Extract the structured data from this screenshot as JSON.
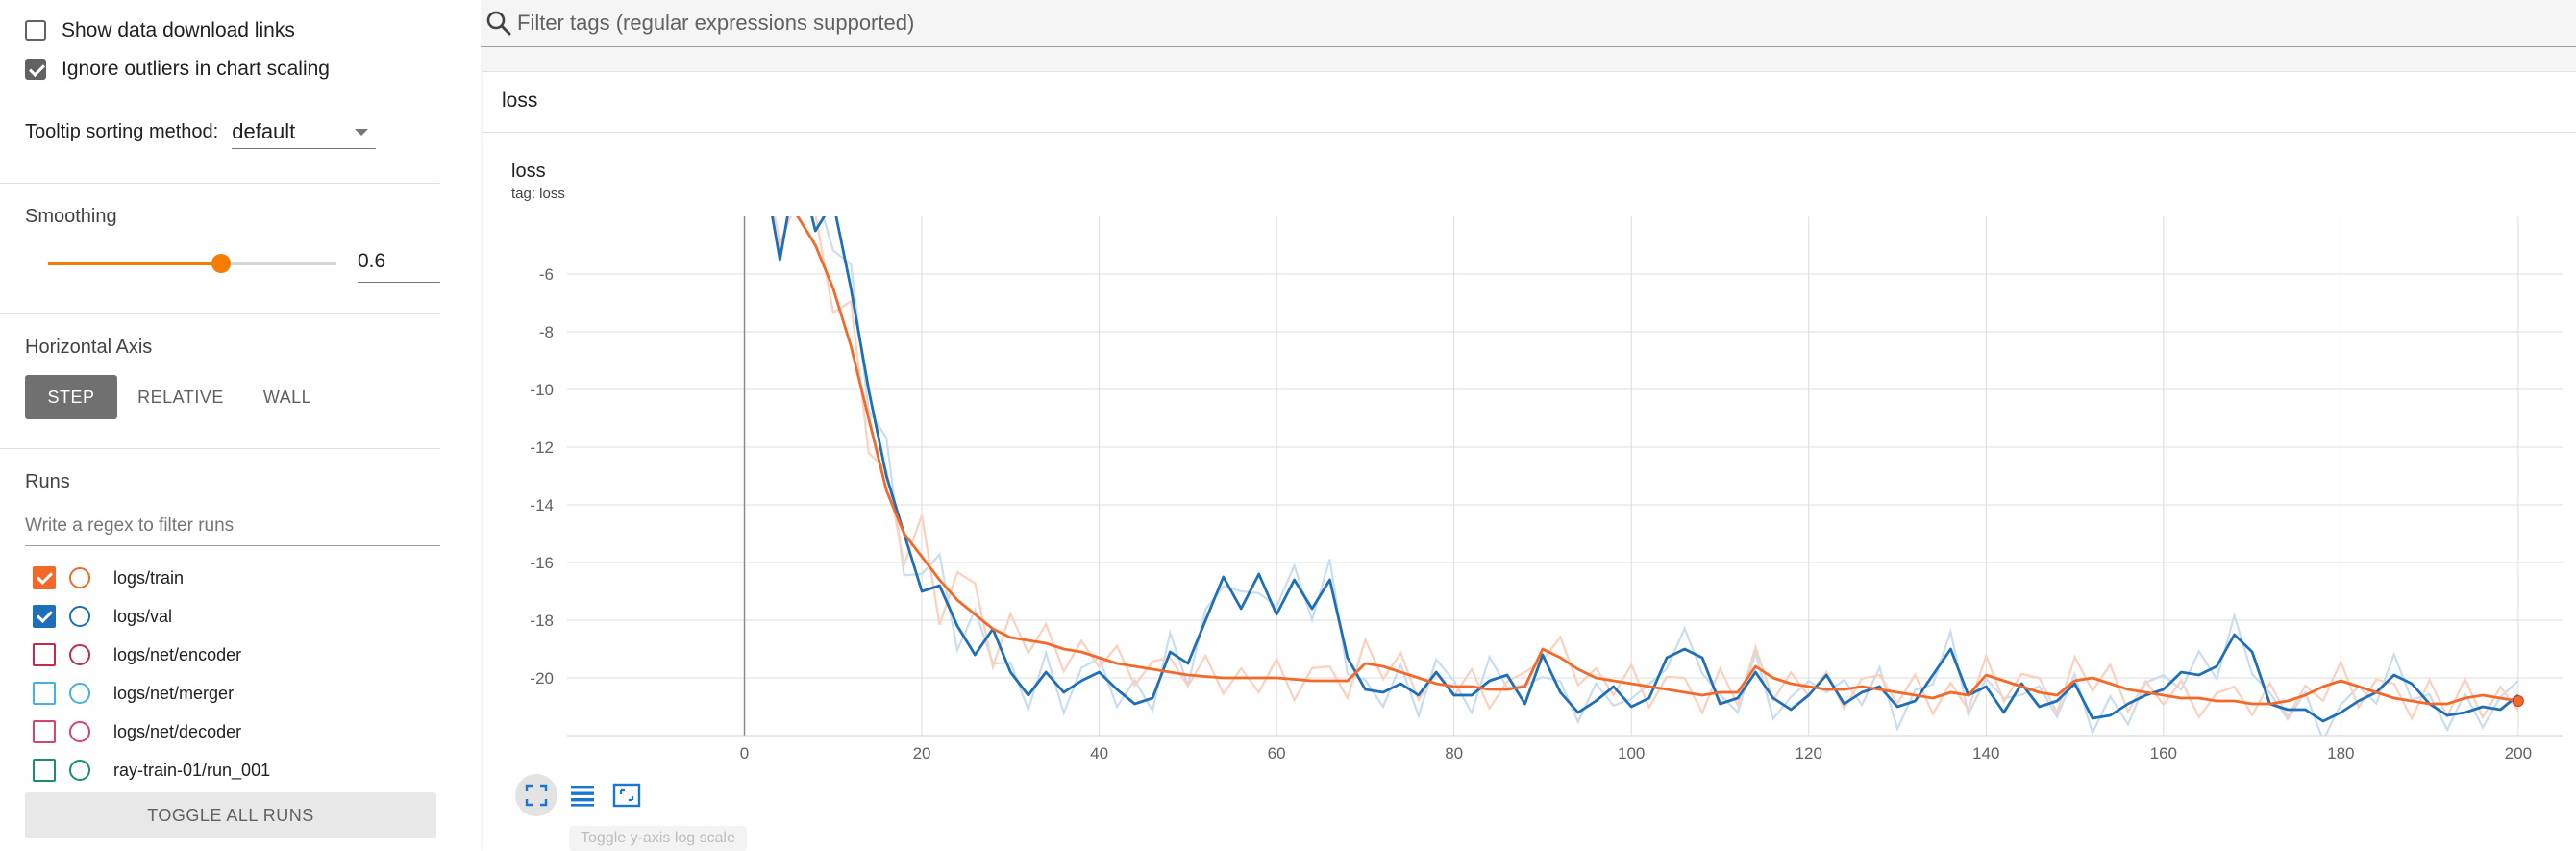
{
  "sidebar": {
    "show_download_links": {
      "label": "Show data download links",
      "checked": false
    },
    "ignore_outliers": {
      "label": "Ignore outliers in chart scaling",
      "checked": true
    },
    "tooltip_sorting": {
      "label": "Tooltip sorting method:",
      "value": "default"
    },
    "smoothing": {
      "title": "Smoothing",
      "value": "0.6",
      "level": 0.6
    },
    "horizontal_axis": {
      "title": "Horizontal Axis",
      "options": [
        "STEP",
        "RELATIVE",
        "WALL"
      ],
      "selected": "STEP"
    },
    "runs": {
      "title": "Runs",
      "filter_placeholder": "Write a regex to filter runs",
      "items": [
        {
          "label": "logs/train",
          "checked": true,
          "color": "#f4692a"
        },
        {
          "label": "logs/val",
          "checked": true,
          "color": "#1f6fb8"
        },
        {
          "label": "logs/net/encoder",
          "checked": false,
          "color": "#c42b46"
        },
        {
          "label": "logs/net/merger",
          "checked": false,
          "color": "#43b2e0"
        },
        {
          "label": "logs/net/decoder",
          "checked": false,
          "color": "#d4476a"
        },
        {
          "label": "ray-train-01/run_001",
          "checked": false,
          "color": "#1a8f6f"
        }
      ],
      "toggle_all_label": "TOGGLE ALL RUNS"
    }
  },
  "main": {
    "search_placeholder": "Filter tags (regular expressions supported)",
    "group_title": "loss",
    "chart_title": "loss",
    "chart_tag": "tag: loss",
    "log_scale_tooltip": "Toggle y-axis log scale",
    "icons": [
      "search-icon",
      "fullscreen-icon",
      "lines-icon",
      "fit-domain-icon"
    ]
  },
  "chart_data": {
    "type": "line",
    "title": "loss",
    "subtitle": "tag: loss",
    "xlabel": "",
    "ylabel": "",
    "xlim": [
      -20,
      205
    ],
    "ylim": [
      -22,
      -4
    ],
    "x_ticks": [
      0,
      20,
      40,
      60,
      80,
      100,
      120,
      140,
      160,
      180,
      200
    ],
    "y_ticks": [
      -6,
      -8,
      -10,
      -12,
      -14,
      -16,
      -18,
      -20
    ],
    "grid": true,
    "colors": {
      "train": "#f4692a",
      "val": "#1f6fb8",
      "train_raw": "#fbd0bc",
      "val_raw": "#c9dcf0"
    },
    "series": [
      {
        "name": "logs/val",
        "x": [
          0,
          2,
          4,
          6,
          8,
          10,
          12,
          14,
          16,
          18,
          20,
          22,
          24,
          26,
          28,
          30,
          32,
          34,
          36,
          38,
          40,
          42,
          44,
          46,
          48,
          50,
          52,
          54,
          56,
          58,
          60,
          62,
          64,
          66,
          68,
          70,
          72,
          74,
          76,
          78,
          80,
          82,
          84,
          86,
          88,
          90,
          92,
          94,
          96,
          98,
          100,
          102,
          104,
          106,
          108,
          110,
          112,
          114,
          116,
          118,
          120,
          122,
          124,
          126,
          128,
          130,
          132,
          134,
          136,
          138,
          140,
          142,
          144,
          146,
          148,
          150,
          152,
          154,
          156,
          158,
          160,
          162,
          164,
          166,
          168,
          170,
          172,
          174,
          176,
          178,
          180,
          182,
          184,
          186,
          188,
          190,
          192,
          194,
          196,
          198,
          200
        ],
        "y": [
          -3,
          -2,
          -5.5,
          -2,
          -4.5,
          -3.5,
          -6.5,
          -10,
          -13,
          -15,
          -17,
          -16.8,
          -18.2,
          -19.2,
          -18.3,
          -19.8,
          -20.6,
          -19.8,
          -20.5,
          -20.1,
          -19.8,
          -20.4,
          -20.9,
          -20.7,
          -19.1,
          -19.5,
          -18,
          -16.5,
          -17.6,
          -16.4,
          -17.8,
          -16.6,
          -17.6,
          -16.6,
          -19.3,
          -20.4,
          -20.5,
          -20.2,
          -20.6,
          -19.8,
          -20.6,
          -20.6,
          -20.1,
          -19.9,
          -20.9,
          -19.2,
          -20.5,
          -21.2,
          -20.8,
          -20.3,
          -21,
          -20.7,
          -19.3,
          -19.0,
          -19.3,
          -20.9,
          -20.7,
          -19.8,
          -20.7,
          -21.1,
          -20.6,
          -19.9,
          -20.9,
          -20.5,
          -20.3,
          -21,
          -20.8,
          -19.9,
          -19.0,
          -20.6,
          -20.3,
          -21.2,
          -20.2,
          -21.0,
          -20.8,
          -20.2,
          -21.4,
          -21.3,
          -20.9,
          -20.6,
          -20.4,
          -19.8,
          -19.9,
          -19.6,
          -18.5,
          -19.1,
          -20.9,
          -21.1,
          -21.1,
          -21.5,
          -21.2,
          -20.8,
          -20.5,
          -19.9,
          -20.2,
          -20.9,
          -21.3,
          -21.2,
          -21.0,
          -21.1,
          -20.6
        ]
      },
      {
        "name": "logs/train",
        "x": [
          0,
          2,
          4,
          6,
          8,
          10,
          12,
          14,
          16,
          18,
          20,
          22,
          24,
          26,
          28,
          30,
          32,
          34,
          36,
          38,
          40,
          42,
          44,
          46,
          48,
          50,
          52,
          54,
          56,
          58,
          60,
          62,
          64,
          66,
          68,
          70,
          72,
          74,
          76,
          78,
          80,
          82,
          84,
          86,
          88,
          90,
          92,
          94,
          96,
          98,
          100,
          102,
          104,
          106,
          108,
          110,
          112,
          114,
          116,
          118,
          120,
          122,
          124,
          126,
          128,
          130,
          132,
          134,
          136,
          138,
          140,
          142,
          144,
          146,
          148,
          150,
          152,
          154,
          156,
          158,
          160,
          162,
          164,
          166,
          168,
          170,
          172,
          174,
          176,
          178,
          180,
          182,
          184,
          186,
          188,
          190,
          192,
          194,
          196,
          198,
          200
        ],
        "y": [
          -2.5,
          -3.0,
          -3.5,
          -4.0,
          -5.0,
          -6.5,
          -8.5,
          -11,
          -13.5,
          -15,
          -15.8,
          -16.6,
          -17.3,
          -17.8,
          -18.3,
          -18.6,
          -18.7,
          -18.8,
          -19.0,
          -19.1,
          -19.3,
          -19.5,
          -19.6,
          -19.7,
          -19.8,
          -19.9,
          -19.95,
          -20.0,
          -20.0,
          -20.0,
          -20.0,
          -20.05,
          -20.1,
          -20.1,
          -20.1,
          -19.5,
          -19.6,
          -19.8,
          -20.0,
          -20.2,
          -20.3,
          -20.3,
          -20.4,
          -20.4,
          -20.3,
          -19.0,
          -19.3,
          -19.7,
          -20.0,
          -20.1,
          -20.2,
          -20.3,
          -20.4,
          -20.5,
          -20.6,
          -20.5,
          -20.5,
          -19.6,
          -20.0,
          -20.2,
          -20.3,
          -20.4,
          -20.4,
          -20.3,
          -20.4,
          -20.5,
          -20.6,
          -20.7,
          -20.5,
          -20.6,
          -19.9,
          -20.1,
          -20.3,
          -20.5,
          -20.6,
          -20.1,
          -20.0,
          -20.2,
          -20.4,
          -20.5,
          -20.6,
          -20.7,
          -20.7,
          -20.8,
          -20.8,
          -20.9,
          -20.9,
          -20.8,
          -20.6,
          -20.3,
          -20.1,
          -20.3,
          -20.5,
          -20.7,
          -20.8,
          -20.9,
          -20.9,
          -20.7,
          -20.6,
          -20.7,
          -20.8
        ]
      }
    ]
  }
}
